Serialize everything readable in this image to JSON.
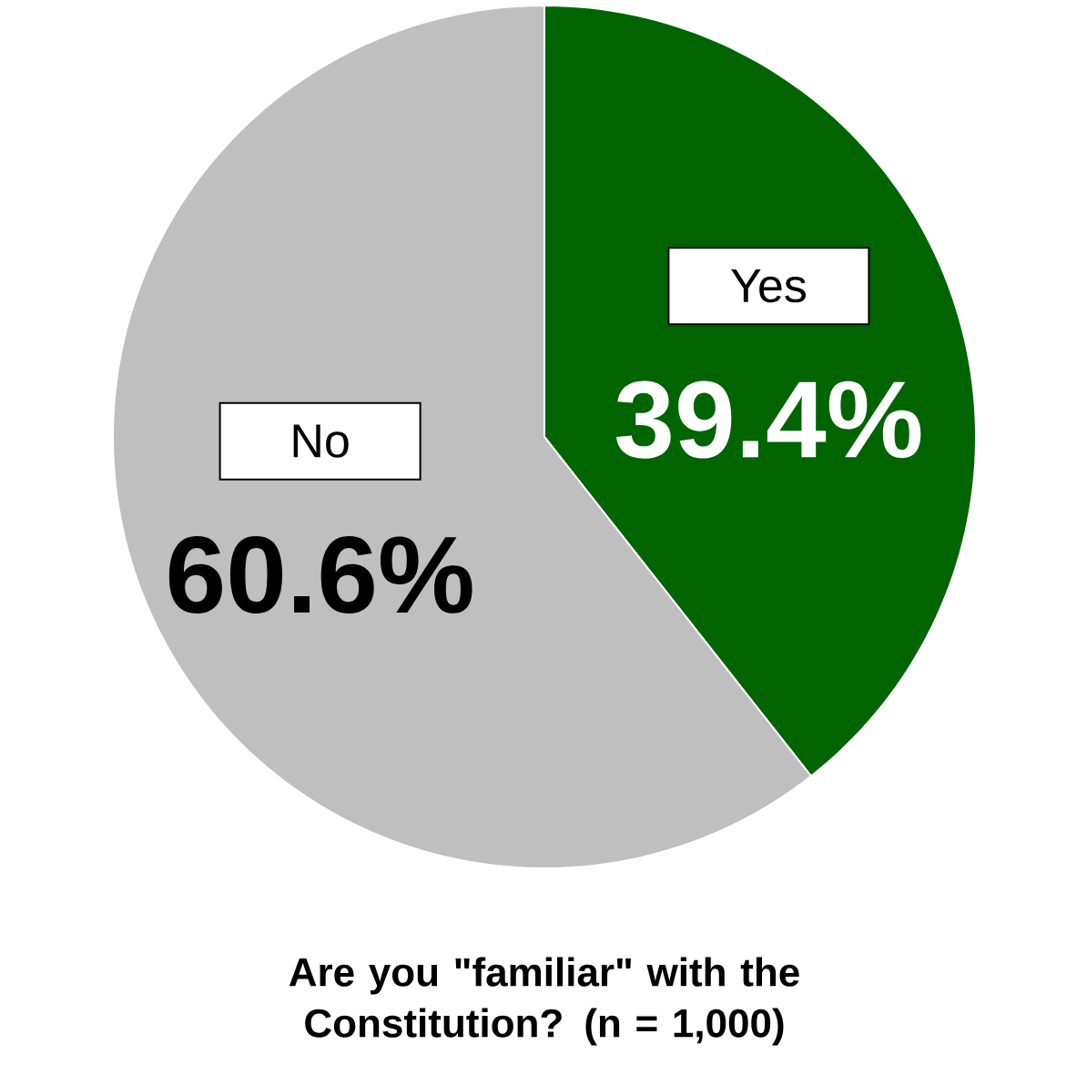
{
  "chart_data": {
    "type": "pie",
    "title": "Are you \"familiar\" with the Constitution? (n = 1,000)",
    "categories": [
      "Yes",
      "No"
    ],
    "values": [
      39.4,
      60.6
    ],
    "colors": [
      "#006400",
      "#bfbfbf"
    ],
    "value_labels": [
      "39.4%",
      "60.6%"
    ]
  }
}
